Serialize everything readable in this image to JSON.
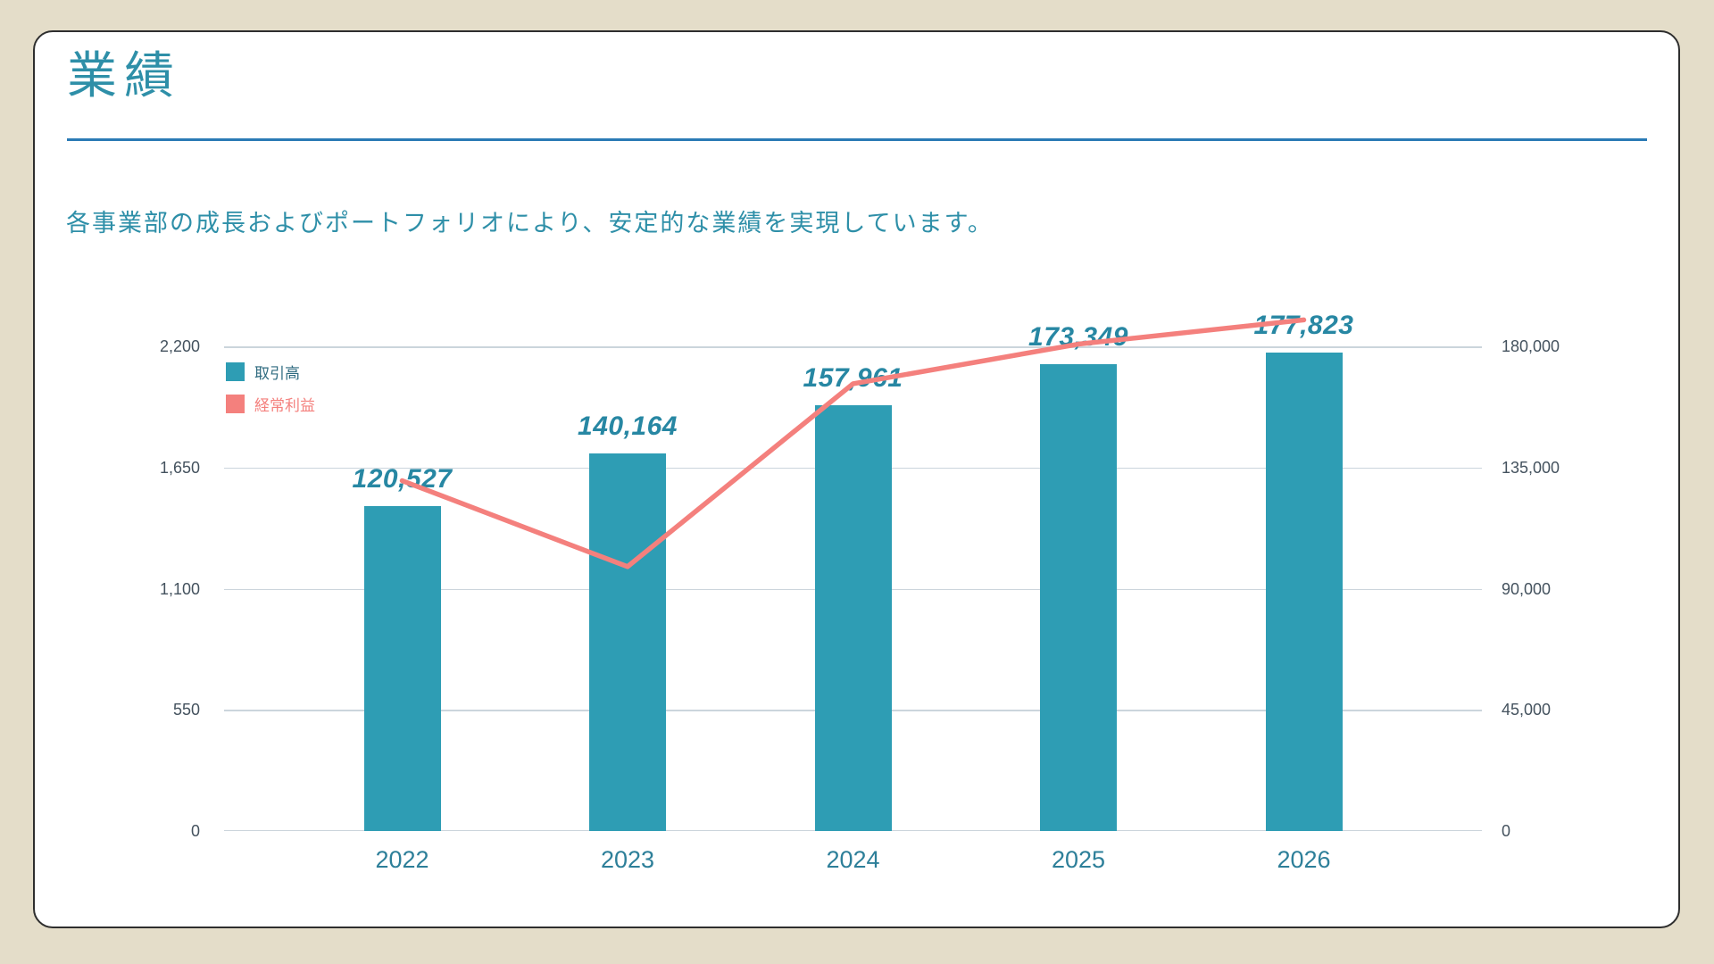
{
  "slide": {
    "title": "業績",
    "subtitle": "各事業部の成長およびポートフォリオにより、安定的な業績を実現しています。"
  },
  "colors": {
    "background": "#E4DDC9",
    "card": "#FFFFFF",
    "card_border": "#2E2E2E",
    "title": "#2E8FA8",
    "divider": "#2A7AB5",
    "bar": "#2E9DB4",
    "line": "#F4807D",
    "value_label": "#2787A3",
    "axis_text": "#44525E",
    "x_label": "#2D7F99",
    "gridline": "#CBD5DC",
    "legend_bar_text": "#2F6B80"
  },
  "chart_data": {
    "type": "bar+line",
    "categories": [
      "2022",
      "2023",
      "2024",
      "2025",
      "2026"
    ],
    "series": [
      {
        "name": "取引高",
        "type": "bar",
        "axis": "right",
        "color": "#2E9DB4",
        "values": [
          120527,
          140164,
          157961,
          173349,
          177823
        ]
      },
      {
        "name": "経常利益",
        "type": "line",
        "axis": "left",
        "color": "#F4807D",
        "values": [
          1590,
          1200,
          2030,
          2210,
          2320
        ]
      }
    ],
    "left_axis": {
      "min": 0,
      "max": 2200,
      "ticks": [
        0,
        550,
        1100,
        1650,
        2200
      ]
    },
    "right_axis": {
      "min": 0,
      "max": 180000,
      "ticks": [
        0,
        45000,
        90000,
        135000,
        180000
      ]
    },
    "grid": true,
    "legend_position": "top-left",
    "bar_data_labels": [
      "120,527",
      "140,164",
      "157,961",
      "173,349",
      "177,823"
    ]
  }
}
